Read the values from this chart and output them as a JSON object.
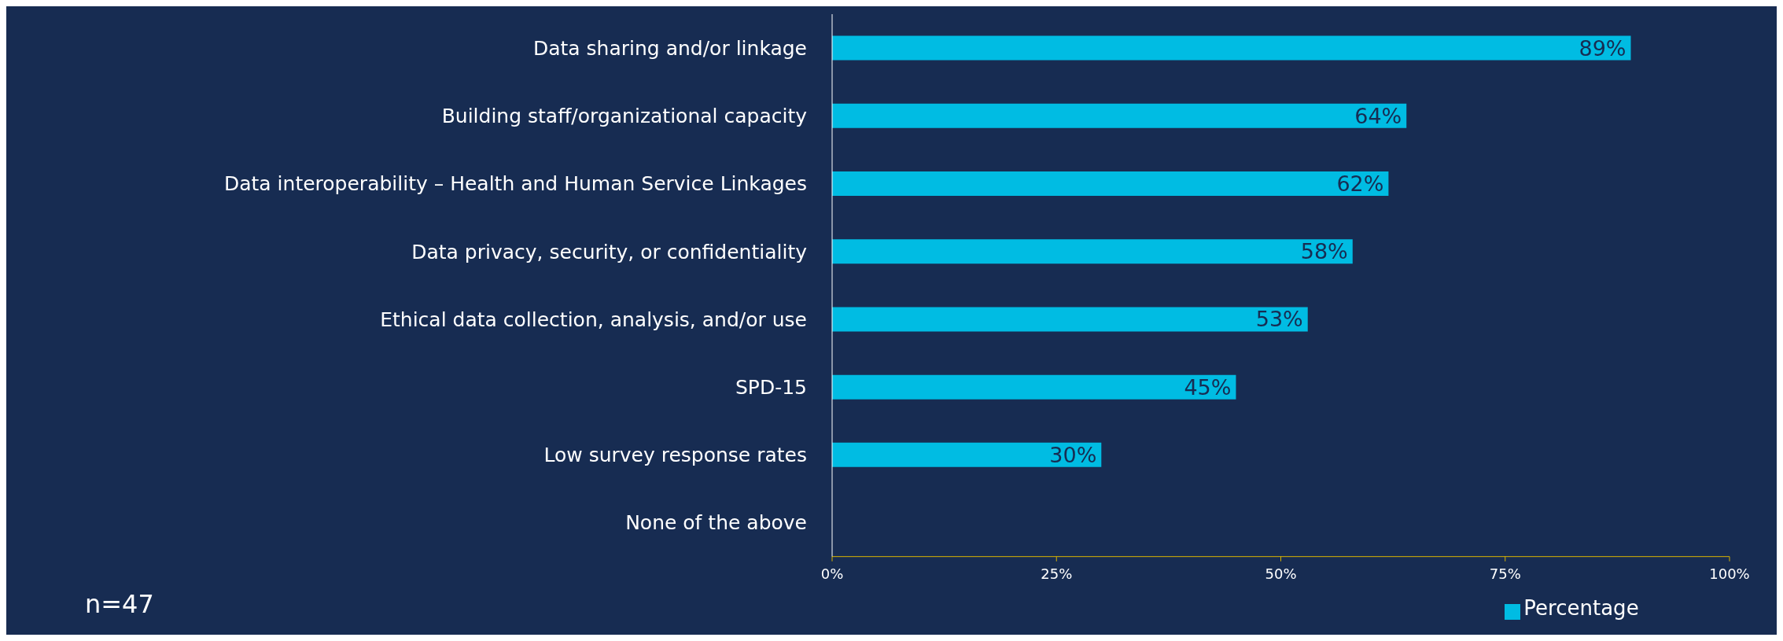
{
  "chart_data": {
    "type": "bar",
    "orientation": "horizontal",
    "categories": [
      "Data sharing and/or linkage",
      "Building staff/organizational capacity",
      "Data interoperability – Health and Human Service Linkages",
      "Data privacy, security, or confidentiality",
      "Ethical data collection, analysis, and/or use",
      "SPD-15",
      "Low survey response rates",
      "None of the above"
    ],
    "series": [
      {
        "name": "Percentage",
        "color": "#00bce3",
        "values": [
          89,
          64,
          62,
          58,
          53,
          45,
          30,
          0
        ],
        "value_labels": [
          "89%",
          "64%",
          "62%",
          "58%",
          "53%",
          "45%",
          "30%",
          null
        ]
      }
    ],
    "xlim": [
      0,
      100
    ],
    "xticks": [
      {
        "value": 0,
        "label": "0%"
      },
      {
        "value": 25,
        "label": "25%"
      },
      {
        "value": 50,
        "label": "50%"
      },
      {
        "value": 75,
        "label": "75%"
      },
      {
        "value": 100,
        "label": "100%"
      }
    ],
    "grid": false,
    "legend": "bottom",
    "annotations": [
      "n=47"
    ]
  }
}
